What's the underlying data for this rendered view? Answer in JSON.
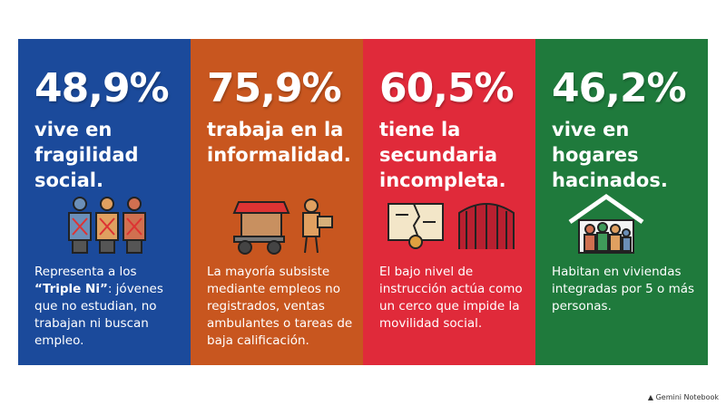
{
  "panels": [
    {
      "stat": "48,9%",
      "headline": [
        "vive en",
        "fragilidad",
        "social."
      ],
      "description": {
        "before": "Representa a los ",
        "emphasis": "“Triple Ni”",
        "after": ": jóvenes que no estudian, no trabajan ni buscan empleo."
      }
    },
    {
      "stat": "75,9%",
      "headline": [
        "trabaja en la",
        "informalidad."
      ],
      "description": "La mayoría subsiste mediante empleos no registrados, ventas ambulantes o tareas de baja calificación."
    },
    {
      "stat": "60,5%",
      "headline": [
        "tiene la",
        "secundaria",
        "incompleta."
      ],
      "description": "El bajo nivel de instrucción actúa como un cerco que impide la movilidad social."
    },
    {
      "stat": "46,2%",
      "headline": [
        "vive en",
        "hogares",
        "hacinados."
      ],
      "description": "Habitan en viviendas integradas por 5 o más personas."
    }
  ],
  "footer": "Gemini Notebook"
}
